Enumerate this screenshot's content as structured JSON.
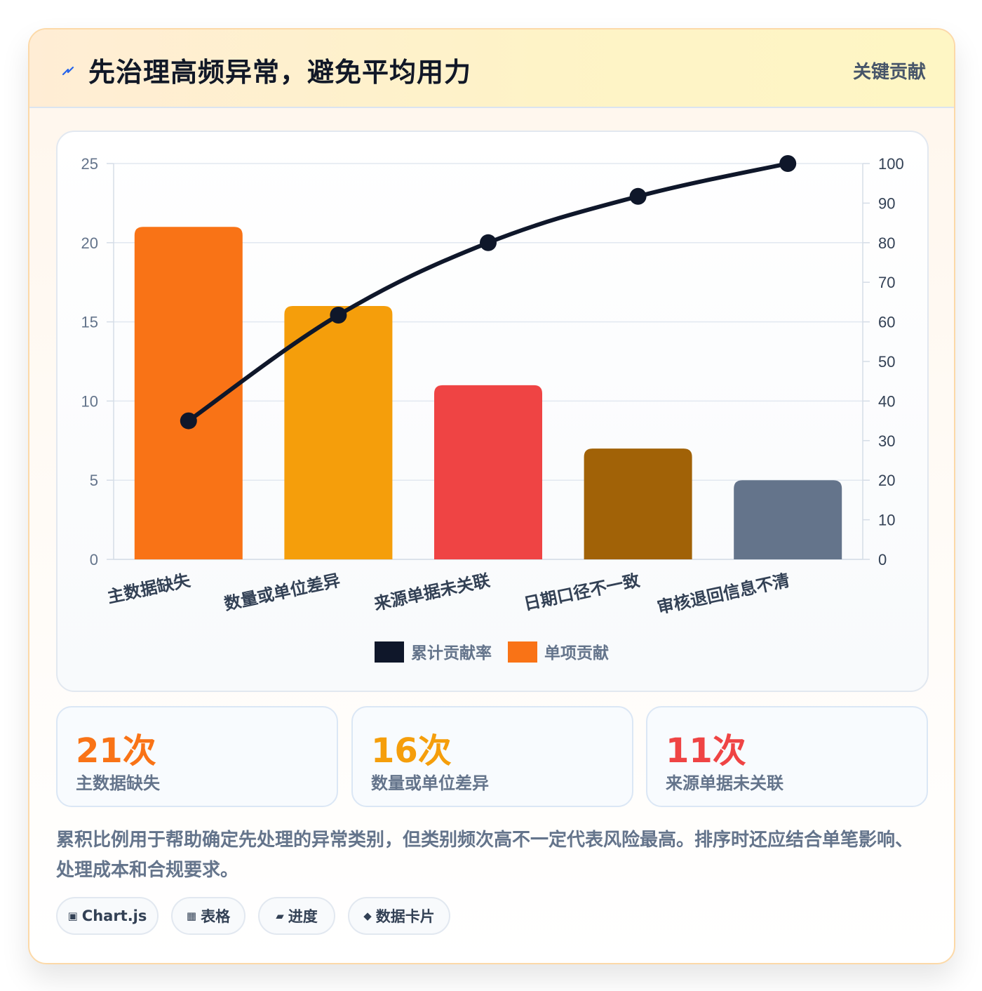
{
  "header": {
    "title": "先治理高频异常，避免平均用力",
    "tag": "关键贡献",
    "icon": "lightning-icon",
    "accent": "#2563eb"
  },
  "chart_data": {
    "type": "bar",
    "categories": [
      "主数据缺失",
      "数量或单位差异",
      "来源单据未关联",
      "日期口径不一致",
      "审核退回信息不清"
    ],
    "series": [
      {
        "name": "单项贡献",
        "type": "bar",
        "axis": "left",
        "values": [
          21,
          16,
          11,
          7,
          5
        ],
        "colors": [
          "#f97316",
          "#f59e0b",
          "#ef4444",
          "#a16207",
          "#64748b"
        ]
      },
      {
        "name": "累计贡献率",
        "type": "line",
        "axis": "right",
        "values": [
          35,
          61.7,
          80,
          91.7,
          100
        ],
        "color": "#0f172a"
      }
    ],
    "y_left": {
      "min": 0,
      "max": 25,
      "ticks": [
        0,
        5,
        10,
        15,
        20,
        25
      ]
    },
    "y_right": {
      "min": 0,
      "max": 100,
      "ticks": [
        0,
        10,
        20,
        30,
        40,
        50,
        60,
        70,
        80,
        90,
        100
      ]
    },
    "legend": [
      {
        "label": "累计贡献率",
        "color": "#0f172a"
      },
      {
        "label": "单项贡献",
        "color": "#f97316"
      }
    ],
    "legend_position": "bottom",
    "grid": true
  },
  "stats": [
    {
      "value": "21次",
      "label": "主数据缺失",
      "color": "#f97316"
    },
    {
      "value": "16次",
      "label": "数量或单位差异",
      "color": "#f59e0b"
    },
    {
      "value": "11次",
      "label": "来源单据未关联",
      "color": "#ef4444"
    }
  ],
  "description": "累积比例用于帮助确定先处理的异常类别，但类别频次高不一定代表风险最高。排序时还应结合单笔影响、处理成本和合规要求。",
  "pills": [
    {
      "icon": "▣",
      "label": "Chart.js"
    },
    {
      "icon": "▦",
      "label": "表格"
    },
    {
      "icon": "▰",
      "label": "进度"
    },
    {
      "icon": "◆",
      "label": "数据卡片"
    }
  ]
}
